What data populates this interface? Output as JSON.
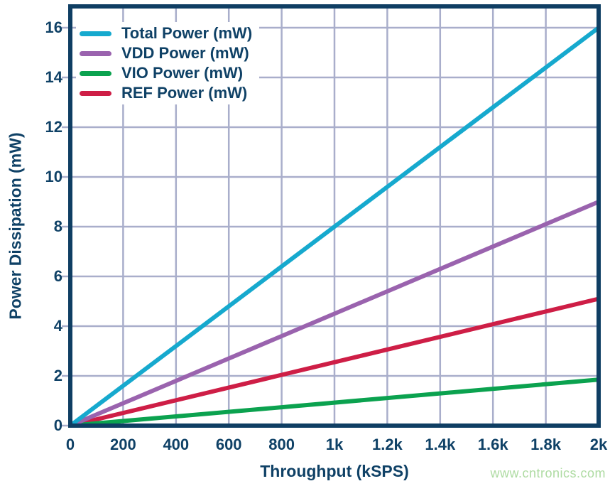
{
  "watermark": "www.cntronics.com",
  "colors": {
    "navy_text": "#0f4166",
    "plot_border": "#0f3e63",
    "gridline": "#a9aecb",
    "background": "#ffffff",
    "watermark_green": "#aedba2"
  },
  "chart_data": {
    "type": "line",
    "title": "",
    "xlabel": "Throughput (kSPS)",
    "ylabel": "Power Dissipation (mW)",
    "xlim": [
      0,
      2000
    ],
    "ylim": [
      0,
      16
    ],
    "grid": true,
    "legend_position": "top-left",
    "x_ticks": [
      {
        "value": 0,
        "label": "0"
      },
      {
        "value": 200,
        "label": "200"
      },
      {
        "value": 400,
        "label": "400"
      },
      {
        "value": 600,
        "label": "600"
      },
      {
        "value": 800,
        "label": "800"
      },
      {
        "value": 1000,
        "label": "1k"
      },
      {
        "value": 1200,
        "label": "1.2k"
      },
      {
        "value": 1400,
        "label": "1.4k"
      },
      {
        "value": 1600,
        "label": "1.6k"
      },
      {
        "value": 1800,
        "label": "1.8k"
      },
      {
        "value": 2000,
        "label": "2k"
      }
    ],
    "y_ticks": [
      {
        "value": 0,
        "label": "0"
      },
      {
        "value": 2,
        "label": "2"
      },
      {
        "value": 4,
        "label": "4"
      },
      {
        "value": 6,
        "label": "6"
      },
      {
        "value": 8,
        "label": "8"
      },
      {
        "value": 10,
        "label": "10"
      },
      {
        "value": 12,
        "label": "12"
      },
      {
        "value": 14,
        "label": "14"
      },
      {
        "value": 16,
        "label": "16"
      }
    ],
    "x": [
      0,
      2000
    ],
    "series": [
      {
        "name": "Total Power (mW)",
        "color": "#16a9ce",
        "values": [
          0,
          16.0
        ]
      },
      {
        "name": "VDD Power (mW)",
        "color": "#9a63ae",
        "values": [
          0,
          9.0
        ]
      },
      {
        "name": "VIO Power (mW)",
        "color": "#0ba24f",
        "values": [
          0,
          1.85
        ]
      },
      {
        "name": "REF Power (mW)",
        "color": "#ce1e46",
        "values": [
          0,
          5.1
        ]
      }
    ]
  }
}
